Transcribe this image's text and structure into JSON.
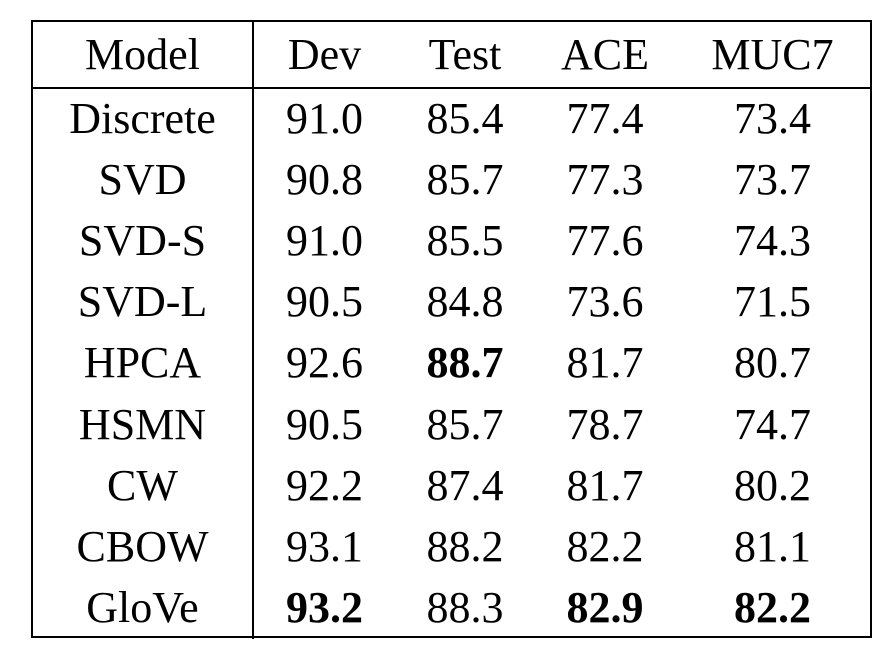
{
  "table": {
    "headers": [
      "Model",
      "Dev",
      "Test",
      "ACE",
      "MUC7"
    ],
    "rows": [
      {
        "model": "Discrete",
        "dev": "91.0",
        "test": "85.4",
        "ace": "77.4",
        "muc7": "73.4"
      },
      {
        "model": "SVD",
        "dev": "90.8",
        "test": "85.7",
        "ace": "77.3",
        "muc7": "73.7"
      },
      {
        "model": "SVD-S",
        "dev": "91.0",
        "test": "85.5",
        "ace": "77.6",
        "muc7": "74.3"
      },
      {
        "model": "SVD-L",
        "dev": "90.5",
        "test": "84.8",
        "ace": "73.6",
        "muc7": "71.5"
      },
      {
        "model": "HPCA",
        "dev": "92.6",
        "test": "88.7",
        "ace": "81.7",
        "muc7": "80.7"
      },
      {
        "model": "HSMN",
        "dev": "90.5",
        "test": "85.7",
        "ace": "78.7",
        "muc7": "74.7"
      },
      {
        "model": "CW",
        "dev": "92.2",
        "test": "87.4",
        "ace": "81.7",
        "muc7": "80.2"
      },
      {
        "model": "CBOW",
        "dev": "93.1",
        "test": "88.2",
        "ace": "82.2",
        "muc7": "81.1"
      },
      {
        "model": "GloVe",
        "dev": "93.2",
        "test": "88.3",
        "ace": "82.9",
        "muc7": "82.2"
      }
    ],
    "bold_cells": [
      {
        "row": 4,
        "col": "test"
      },
      {
        "row": 8,
        "col": "dev"
      },
      {
        "row": 8,
        "col": "ace"
      },
      {
        "row": 8,
        "col": "muc7"
      }
    ]
  }
}
